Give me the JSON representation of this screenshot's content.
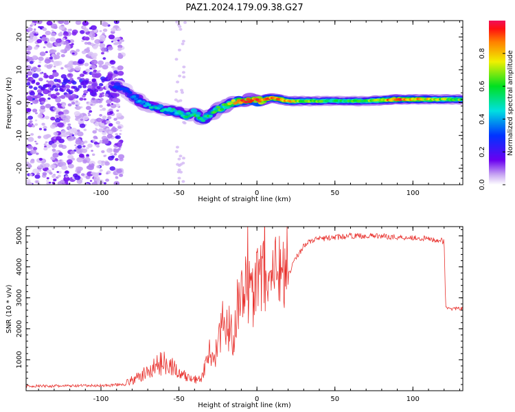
{
  "title": "PAZ1.2024.179.09.38.G27",
  "chart_data": [
    {
      "type": "heatmap",
      "title": "PAZ1.2024.179.09.38.G27",
      "xlabel": "Height of straight line (km)",
      "ylabel": "Frequency (Hz)",
      "xlim": [
        -148,
        132
      ],
      "ylim": [
        -25,
        25
      ],
      "xticks": [
        -100,
        -50,
        0,
        50,
        100
      ],
      "yticks": [
        -20,
        -10,
        0,
        10,
        20
      ],
      "grid": false,
      "colorbar": {
        "label": "Normalized spectral amplitude",
        "range": [
          0,
          1
        ],
        "ticks": [
          0.0,
          0.2,
          0.4,
          0.6,
          0.8
        ]
      },
      "ridge": {
        "x": [
          -148,
          -120,
          -90,
          -85,
          -80,
          -70,
          -60,
          -50,
          -45,
          -40,
          -35,
          -30,
          -25,
          -20,
          -15,
          -10,
          -5,
          0,
          5,
          10,
          20,
          30,
          50,
          70,
          90,
          110,
          132
        ],
        "freq": [
          6,
          5,
          5,
          4,
          2,
          -1,
          -2,
          -3,
          -4,
          -3,
          -5,
          -4,
          -2,
          -1,
          0,
          0.5,
          1,
          0.5,
          1,
          1.5,
          0.5,
          0.5,
          0.5,
          0.5,
          1,
          1,
          1
        ],
        "amplitude": [
          0.25,
          0.25,
          0.3,
          0.3,
          0.35,
          0.45,
          0.45,
          0.5,
          0.5,
          0.55,
          0.55,
          0.55,
          0.6,
          0.65,
          0.75,
          0.85,
          0.95,
          0.95,
          0.9,
          0.9,
          0.8,
          0.65,
          0.55,
          0.6,
          0.9,
          0.75,
          0.6
        ]
      }
    },
    {
      "type": "line",
      "xlabel": "Height of straight line (km)",
      "ylabel": "SNR (10 * v/v)",
      "xlim": [
        -148,
        132
      ],
      "ylim": [
        0,
        5300
      ],
      "xticks": [
        -100,
        -50,
        0,
        50,
        100
      ],
      "yticks": [
        1000,
        2000,
        3000,
        4000,
        5000
      ],
      "grid": false,
      "color": "#e8302c",
      "x": [
        -148,
        -130,
        -110,
        -95,
        -85,
        -75,
        -70,
        -65,
        -60,
        -57,
        -55,
        -52,
        -50,
        -45,
        -40,
        -37,
        -35,
        -33,
        -30,
        -28,
        -25,
        -22,
        -20,
        -17,
        -15,
        -13,
        -10,
        -8,
        -5,
        -3,
        0,
        3,
        5,
        8,
        10,
        13,
        15,
        18,
        20,
        23,
        25,
        28,
        30,
        35,
        40,
        50,
        60,
        70,
        80,
        90,
        100,
        110,
        118,
        120,
        121,
        125,
        132
      ],
      "y": [
        150,
        150,
        160,
        170,
        220,
        450,
        600,
        800,
        900,
        1000,
        800,
        700,
        500,
        450,
        350,
        250,
        400,
        700,
        1100,
        800,
        1300,
        1900,
        1600,
        2000,
        1200,
        2400,
        2600,
        3100,
        2700,
        2500,
        3300,
        3000,
        3400,
        3100,
        3500,
        3200,
        3600,
        3400,
        3700,
        4100,
        4300,
        4500,
        4700,
        4850,
        4900,
        4950,
        5000,
        5000,
        5000,
        4950,
        4950,
        4900,
        4850,
        4800,
        2700,
        2650,
        2650
      ]
    }
  ]
}
